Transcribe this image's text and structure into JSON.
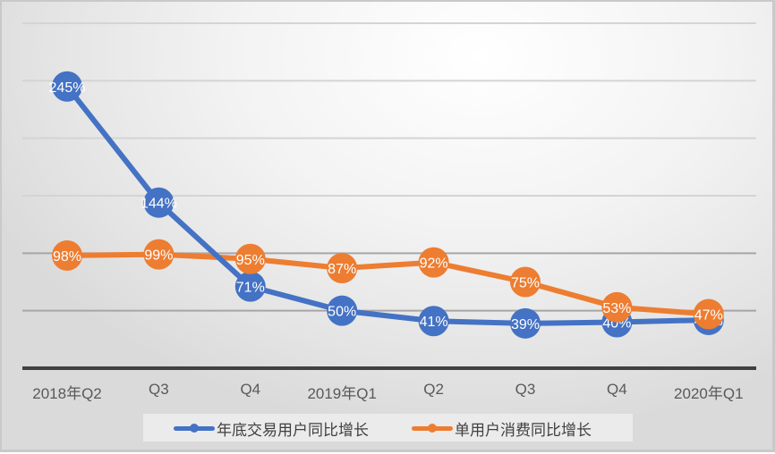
{
  "chart_data": {
    "type": "line",
    "title": "",
    "xlabel": "",
    "ylabel": "",
    "categories": [
      "2018年Q2",
      "Q3",
      "Q4",
      "2019年Q1",
      "Q2",
      "Q3",
      "Q4",
      "2020年Q1"
    ],
    "ylim": [
      0,
      300
    ],
    "grid_values": [
      50,
      100,
      150,
      200,
      250,
      300
    ],
    "grid": true,
    "y_axis_visible": false,
    "legend_position": "bottom",
    "series": [
      {
        "name": "年底交易用户同比增长",
        "color": "#4472c4",
        "values": [
          245,
          144,
          71,
          50,
          41,
          39,
          40,
          42
        ],
        "labels": [
          "245%",
          "144%",
          "71%",
          "50%",
          "41%",
          "39%",
          "40%",
          "42%"
        ]
      },
      {
        "name": "单用户消费同比增长",
        "color": "#ed7d31",
        "values": [
          98,
          99,
          95,
          87,
          92,
          75,
          53,
          47
        ],
        "labels": [
          "98%",
          "99%",
          "95%",
          "87%",
          "92%",
          "75%",
          "53%",
          "47%"
        ]
      }
    ]
  },
  "legend": {
    "items": [
      {
        "label": "年底交易用户同比增长",
        "color": "#4472c4"
      },
      {
        "label": "单用户消费同比增长",
        "color": "#ed7d31"
      }
    ]
  }
}
